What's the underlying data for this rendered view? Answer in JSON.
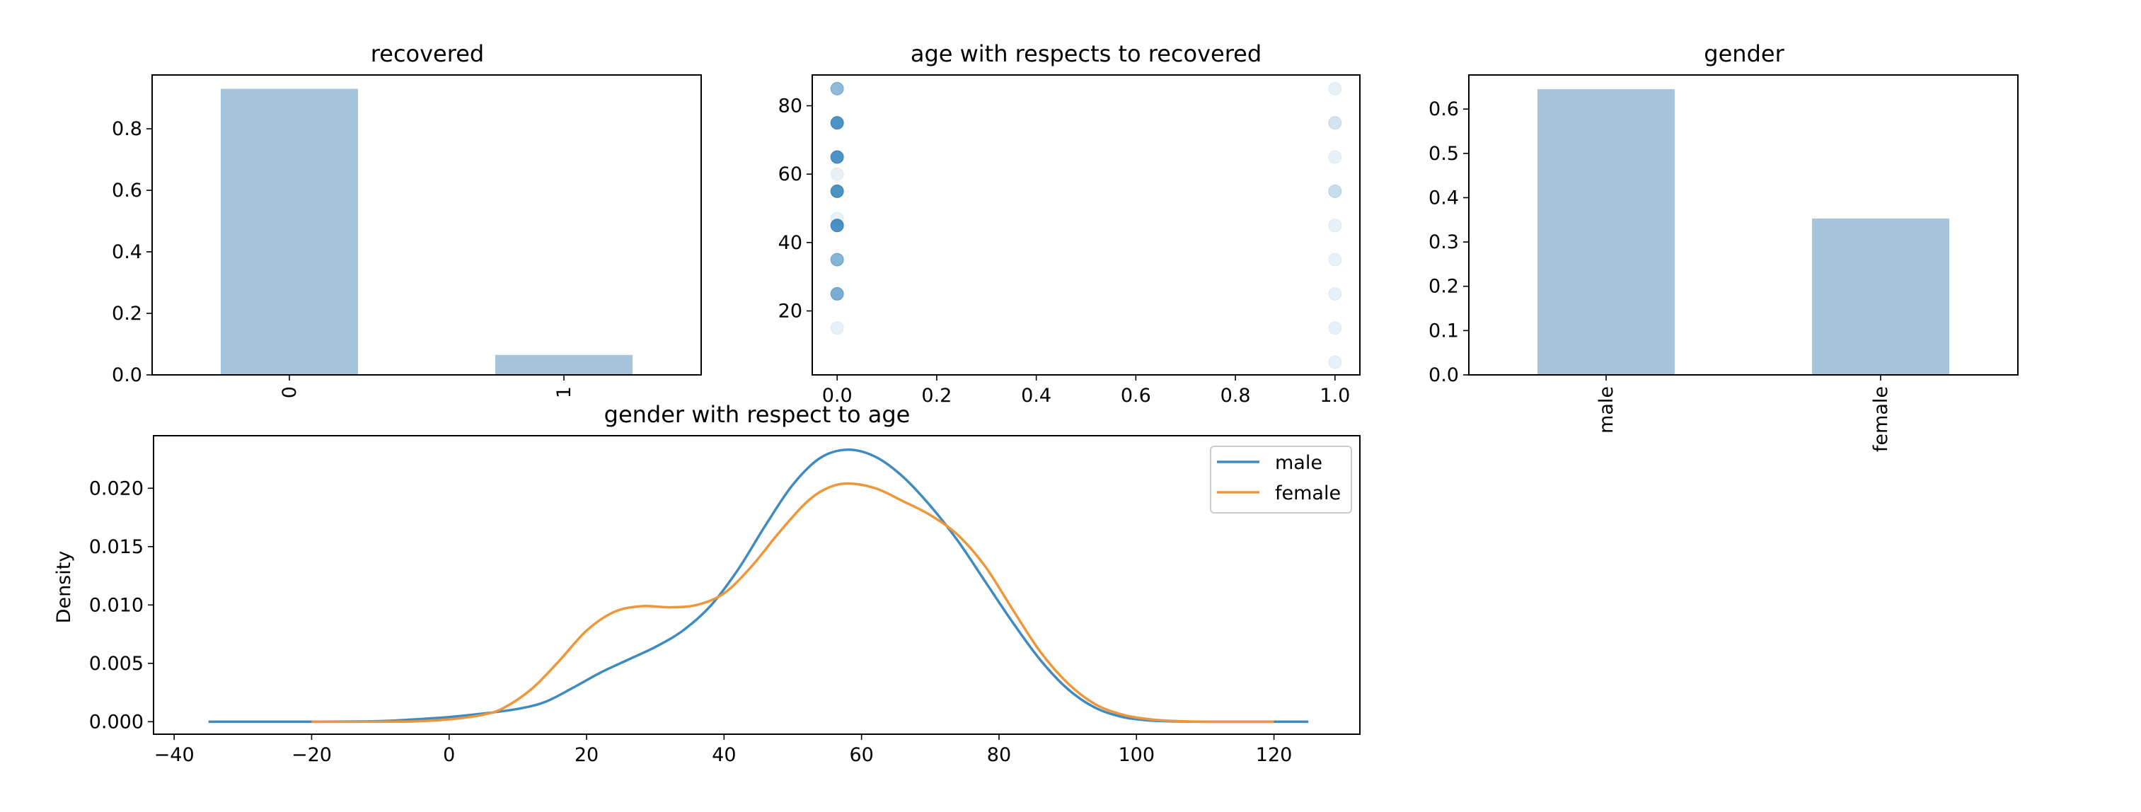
{
  "chart_data": [
    {
      "id": "recovered",
      "type": "bar",
      "title": "recovered",
      "categories": [
        "0",
        "1"
      ],
      "values": [
        0.93,
        0.065
      ],
      "ylim": [
        0,
        0.975
      ],
      "yticks": [
        0.0,
        0.2,
        0.4,
        0.6,
        0.8
      ],
      "ytick_labels": [
        "0.0",
        "0.2",
        "0.4",
        "0.6",
        "0.8"
      ],
      "xlabel": "",
      "ylabel": "",
      "color": "#a6c4dc",
      "grid": false
    },
    {
      "id": "age-vs-recovered",
      "type": "scatter",
      "title": "age with respects to recovered",
      "xlim": [
        -0.05,
        1.05
      ],
      "ylim": [
        1.3,
        89
      ],
      "xticks": [
        0.0,
        0.2,
        0.4,
        0.6,
        0.8,
        1.0
      ],
      "xtick_labels": [
        "0.0",
        "0.2",
        "0.4",
        "0.6",
        "0.8",
        "1.0"
      ],
      "yticks": [
        20,
        40,
        60,
        80
      ],
      "ytick_labels": [
        "20",
        "40",
        "60",
        "80"
      ],
      "color": "#1f77b4",
      "points": [
        {
          "x": 0,
          "y": 85,
          "alpha": 0.5
        },
        {
          "x": 0,
          "y": 75,
          "alpha": 0.8
        },
        {
          "x": 0,
          "y": 65,
          "alpha": 0.8
        },
        {
          "x": 0,
          "y": 60,
          "alpha": 0.1
        },
        {
          "x": 0,
          "y": 55,
          "alpha": 0.8
        },
        {
          "x": 0,
          "y": 47,
          "alpha": 0.1
        },
        {
          "x": 0,
          "y": 45,
          "alpha": 0.8
        },
        {
          "x": 0,
          "y": 35,
          "alpha": 0.55
        },
        {
          "x": 0,
          "y": 25,
          "alpha": 0.6
        },
        {
          "x": 0,
          "y": 15,
          "alpha": 0.1
        },
        {
          "x": 1,
          "y": 85,
          "alpha": 0.1
        },
        {
          "x": 1,
          "y": 75,
          "alpha": 0.2
        },
        {
          "x": 1,
          "y": 65,
          "alpha": 0.1
        },
        {
          "x": 1,
          "y": 55,
          "alpha": 0.25
        },
        {
          "x": 1,
          "y": 45,
          "alpha": 0.1
        },
        {
          "x": 1,
          "y": 35,
          "alpha": 0.1
        },
        {
          "x": 1,
          "y": 25,
          "alpha": 0.1
        },
        {
          "x": 1,
          "y": 15,
          "alpha": 0.1
        },
        {
          "x": 1,
          "y": 5,
          "alpha": 0.1
        }
      ],
      "grid": false
    },
    {
      "id": "gender",
      "type": "bar",
      "title": "gender",
      "categories": [
        "male",
        "female"
      ],
      "values": [
        0.645,
        0.353
      ],
      "ylim": [
        0,
        0.677
      ],
      "yticks": [
        0.0,
        0.1,
        0.2,
        0.3,
        0.4,
        0.5,
        0.6
      ],
      "ytick_labels": [
        "0.0",
        "0.1",
        "0.2",
        "0.3",
        "0.4",
        "0.5",
        "0.6"
      ],
      "color": "#a6c4dc",
      "grid": false
    },
    {
      "id": "gender-age-kde",
      "type": "line",
      "title": "gender with respect to age",
      "xlabel": "",
      "ylabel": "Density",
      "xlim": [
        -43,
        132.5
      ],
      "ylim": [
        -0.00107,
        0.0245
      ],
      "xticks": [
        -40,
        -20,
        0,
        20,
        40,
        60,
        80,
        100,
        120
      ],
      "xtick_labels": [
        "−40",
        "−20",
        "0",
        "20",
        "40",
        "60",
        "80",
        "100",
        "120"
      ],
      "yticks": [
        0.0,
        0.005,
        0.01,
        0.015,
        0.02
      ],
      "ytick_labels": [
        "0.000",
        "0.005",
        "0.010",
        "0.015",
        "0.020"
      ],
      "legend": {
        "placement": "top-right",
        "entries": [
          "male",
          "female"
        ]
      },
      "series": [
        {
          "name": "male",
          "color": "#3f8bc0",
          "x": [
            -35,
            -20,
            -10,
            -5,
            0,
            5,
            10,
            14,
            18,
            22,
            26,
            30,
            34,
            38,
            42,
            46,
            50,
            54,
            58,
            62,
            66,
            70,
            74,
            78,
            82,
            86,
            90,
            94,
            98,
            102,
            106,
            110,
            115,
            120,
            125
          ],
          "y": [
            0,
            0,
            5e-05,
            0.0002,
            0.0004,
            0.0007,
            0.0011,
            0.0017,
            0.0029,
            0.0042,
            0.0053,
            0.0064,
            0.0078,
            0.0099,
            0.013,
            0.0168,
            0.0203,
            0.0226,
            0.0233,
            0.0227,
            0.021,
            0.0185,
            0.0155,
            0.012,
            0.0085,
            0.0053,
            0.0028,
            0.0012,
            0.0004,
            0.0001,
            2e-05,
            0,
            0,
            0,
            0
          ]
        },
        {
          "name": "female",
          "color": "#f0963a",
          "x": [
            -20,
            -10,
            -5,
            0,
            5,
            8,
            12,
            16,
            20,
            24,
            28,
            32,
            36,
            40,
            44,
            48,
            52,
            55,
            58,
            62,
            66,
            70,
            74,
            78,
            82,
            86,
            90,
            94,
            98,
            102,
            106,
            110,
            115,
            120
          ],
          "y": [
            0,
            0,
            3e-05,
            0.0002,
            0.0006,
            0.0012,
            0.0028,
            0.0052,
            0.0078,
            0.0094,
            0.0099,
            0.0098,
            0.01,
            0.011,
            0.0133,
            0.0162,
            0.0188,
            0.02,
            0.0204,
            0.02,
            0.0189,
            0.0177,
            0.016,
            0.0133,
            0.0096,
            0.006,
            0.0033,
            0.0015,
            0.0006,
            0.0002,
            5e-05,
            0,
            0,
            0
          ]
        }
      ],
      "grid": false
    }
  ]
}
